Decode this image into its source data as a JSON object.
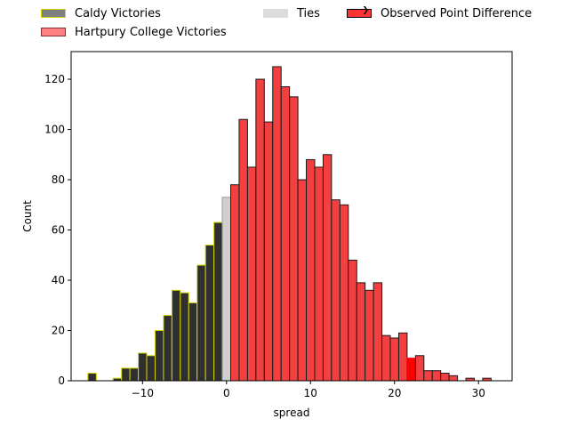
{
  "chart_data": {
    "type": "bar",
    "xlabel": "spread",
    "ylabel": "Count",
    "xlim": [
      -18.5,
      34
    ],
    "ylim": [
      0,
      131
    ],
    "x_ticks": [
      -10,
      0,
      10,
      20,
      30
    ],
    "x_tick_labels": [
      "−10",
      "0",
      "10",
      "20",
      "30"
    ],
    "y_ticks": [
      0,
      20,
      40,
      60,
      80,
      100,
      120
    ],
    "y_tick_labels": [
      "0",
      "20",
      "40",
      "60",
      "80",
      "100",
      "120"
    ],
    "bin_width": 1,
    "legend": {
      "placement": "top, above plot",
      "entries": [
        {
          "label": "Caldy Victories",
          "color": "#808080",
          "edge": "#d4d400"
        },
        {
          "label": "Hartpury College Victories",
          "color": "#ff8080",
          "edge": "#8b3030"
        },
        {
          "label": "Ties",
          "color": "#dcdcdc",
          "edge": "#dcdcdc"
        },
        {
          "label": "Observed Point Difference",
          "color": "#ff3333",
          "edge": "#000000"
        }
      ]
    },
    "series": [
      {
        "name": "Caldy Victories",
        "color": "#2f2f2f",
        "edge": "#d4d400",
        "bins": [
          {
            "x": -16,
            "count": 3
          },
          {
            "x": -15,
            "count": 0
          },
          {
            "x": -14,
            "count": 0
          },
          {
            "x": -13,
            "count": 1
          },
          {
            "x": -12,
            "count": 5
          },
          {
            "x": -11,
            "count": 5
          },
          {
            "x": -10,
            "count": 11
          },
          {
            "x": -9,
            "count": 10
          },
          {
            "x": -8,
            "count": 20
          },
          {
            "x": -7,
            "count": 26
          },
          {
            "x": -6,
            "count": 36
          },
          {
            "x": -5,
            "count": 35
          },
          {
            "x": -4,
            "count": 31
          },
          {
            "x": -3,
            "count": 46
          },
          {
            "x": -2,
            "count": 54
          },
          {
            "x": -1,
            "count": 63
          }
        ]
      },
      {
        "name": "Ties",
        "color": "#cfcfcf",
        "edge": "#999999",
        "bins": [
          {
            "x": 0,
            "count": 73
          }
        ]
      },
      {
        "name": "Hartpury College Victories",
        "color": "#f24040",
        "edge": "#1a1a1a",
        "bins": [
          {
            "x": 1,
            "count": 78
          },
          {
            "x": 2,
            "count": 104
          },
          {
            "x": 3,
            "count": 85
          },
          {
            "x": 4,
            "count": 120
          },
          {
            "x": 5,
            "count": 103
          },
          {
            "x": 6,
            "count": 125
          },
          {
            "x": 7,
            "count": 117
          },
          {
            "x": 8,
            "count": 113
          },
          {
            "x": 9,
            "count": 80
          },
          {
            "x": 10,
            "count": 88
          },
          {
            "x": 11,
            "count": 85
          },
          {
            "x": 12,
            "count": 90
          },
          {
            "x": 13,
            "count": 72
          },
          {
            "x": 14,
            "count": 70
          },
          {
            "x": 15,
            "count": 48
          },
          {
            "x": 16,
            "count": 39
          },
          {
            "x": 17,
            "count": 36
          },
          {
            "x": 18,
            "count": 39
          },
          {
            "x": 19,
            "count": 18
          },
          {
            "x": 20,
            "count": 17
          },
          {
            "x": 21,
            "count": 19
          },
          {
            "x": 22,
            "count": 9
          },
          {
            "x": 23,
            "count": 10
          },
          {
            "x": 24,
            "count": 4
          },
          {
            "x": 25,
            "count": 4
          },
          {
            "x": 26,
            "count": 3
          },
          {
            "x": 27,
            "count": 2
          },
          {
            "x": 28,
            "count": 0
          },
          {
            "x": 29,
            "count": 1
          },
          {
            "x": 30,
            "count": 0
          },
          {
            "x": 31,
            "count": 1
          }
        ]
      }
    ],
    "observed_point_difference": {
      "x": 22,
      "count": 9,
      "color": "#ff0000"
    }
  }
}
